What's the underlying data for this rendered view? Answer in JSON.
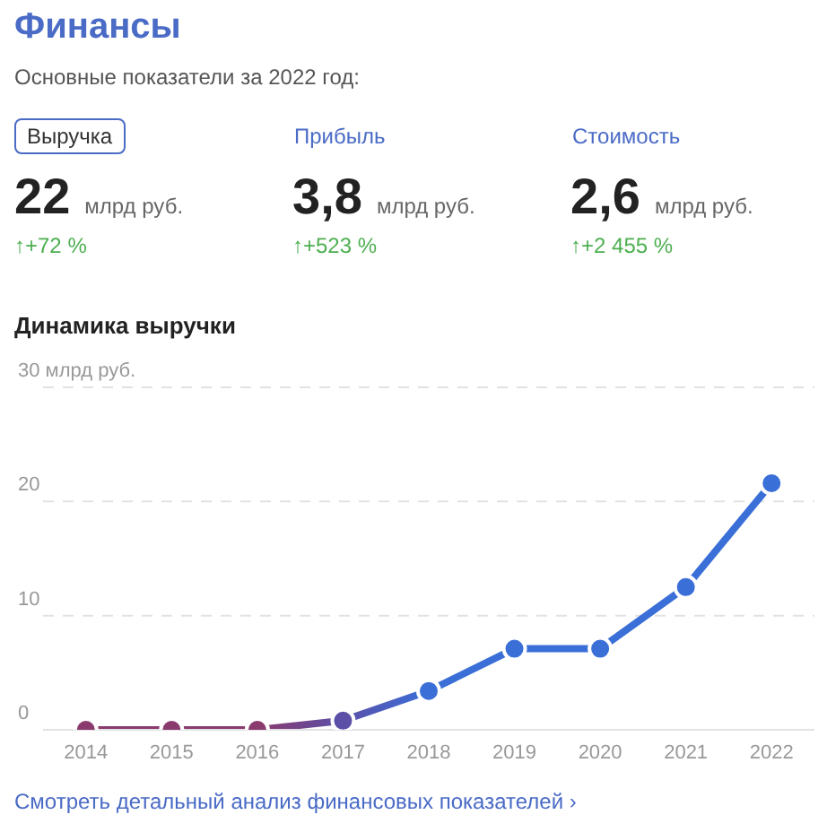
{
  "chart_data": [
    {
      "type": "other",
      "title": "Финансы",
      "subtitle": "Основные показатели за 2022 год:",
      "annotations": [
        "Выручка",
        "22",
        "млрд руб.",
        "↑+72 %",
        "Прибыль",
        "3,8",
        "млрд руб.",
        "↑+523 %",
        "Стоимость",
        "2,6",
        "млрд руб.",
        "↑+2 455 %"
      ]
    },
    {
      "type": "line",
      "title": "Динамика выручки",
      "categories": [
        "2014",
        "2015",
        "2016",
        "2017",
        "2018",
        "2019",
        "2020",
        "2021",
        "2022"
      ],
      "series": [
        {
          "values": [
            0,
            0,
            0,
            0.8,
            3.4,
            7.1,
            7.1,
            12.5,
            21.6
          ],
          "colors": [
            "#8b3a6e",
            "#8b3a6e",
            "#8b3a6e",
            "#5b4fa8",
            "#3a6fd8",
            "#3a6fd8",
            "#3a6fd8",
            "#3a6fd8",
            "#3a6fd8"
          ]
        }
      ],
      "ylim": [
        0,
        30
      ],
      "yticks": [
        0,
        10,
        20,
        {
          "value": 30,
          "label": "30 млрд руб."
        }
      ],
      "grid": "y",
      "marker": "circle",
      "line_style": "solid",
      "annotations": [
        "Смотреть детальный анализ финансовых показателей ›"
      ]
    }
  ]
}
